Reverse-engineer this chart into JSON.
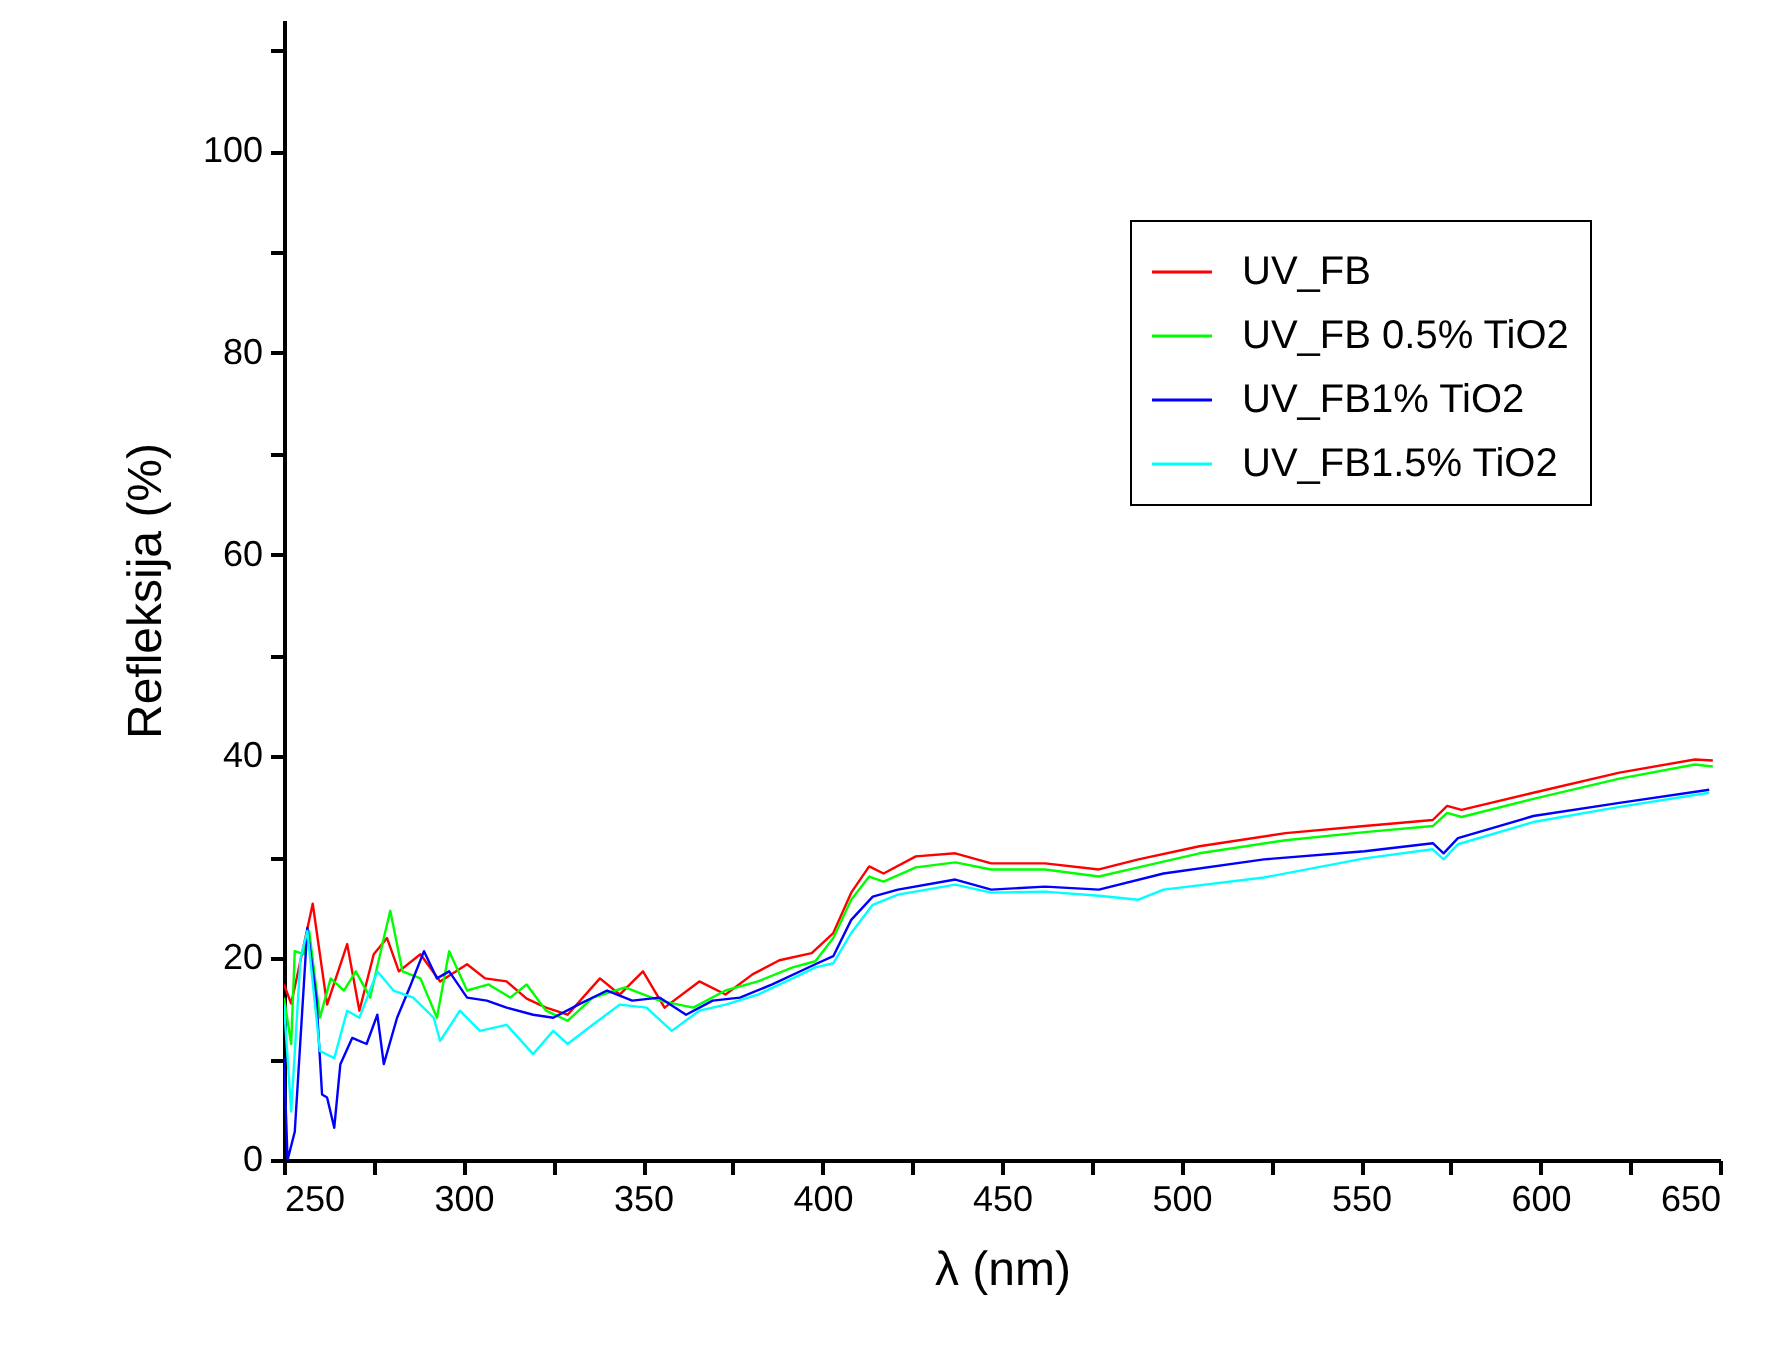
{
  "chart_data": {
    "type": "line",
    "xlabel": "λ (nm)",
    "ylabel": "Refleksija (%)",
    "xlim": [
      250,
      650
    ],
    "ylim": [
      0,
      113
    ],
    "xticks": [
      250,
      {
        "value": 275,
        "label": null
      },
      300,
      {
        "value": 325,
        "label": null
      },
      350,
      {
        "value": 375,
        "label": null
      },
      400,
      {
        "value": 425,
        "label": null
      },
      450,
      {
        "value": 475,
        "label": null
      },
      500,
      {
        "value": 525,
        "label": null
      },
      550,
      {
        "value": 575,
        "label": null
      },
      600,
      {
        "value": 625,
        "label": null
      },
      650
    ],
    "yticks": [
      0,
      {
        "value": 10,
        "label": null
      },
      20,
      {
        "value": 30,
        "label": null
      },
      40,
      {
        "value": 50,
        "label": null
      },
      60,
      {
        "value": 70,
        "label": null
      },
      80,
      {
        "value": 90,
        "label": null
      },
      100,
      {
        "value": 110,
        "label": null
      }
    ],
    "grid": false,
    "legend": "top right",
    "marker": "none",
    "line_style": "solid",
    "series": [
      {
        "name": "UV_FB",
        "color": "#ff0000",
        "x": [
          250,
          252,
          258,
          262,
          267.6,
          271,
          275,
          278.7,
          282,
          288,
          293.5,
          301,
          306,
          312,
          317.6,
          323,
          329,
          338,
          343.5,
          350,
          356,
          365.7,
          373,
          380.5,
          388,
          397,
          403,
          408,
          413,
          417,
          426,
          437,
          447,
          462,
          477,
          488,
          505,
          529,
          551,
          570,
          574,
          578,
          598,
          622,
          643,
          648
        ],
        "values": [
          17.4,
          15.5,
          25.4,
          15.4,
          21.4,
          14.8,
          20.4,
          22,
          18.7,
          20.4,
          17.7,
          19.4,
          18,
          17.7,
          16,
          15.1,
          14.4,
          18,
          16.4,
          18.7,
          15.1,
          17.7,
          16.4,
          18.4,
          19.8,
          20.5,
          22.5,
          26.5,
          29.1,
          28.4,
          30.1,
          30.4,
          29.4,
          29.4,
          28.8,
          29.8,
          31.1,
          32.4,
          33.1,
          33.7,
          35.1,
          34.7,
          36.4,
          38.4,
          39.7,
          39.6
        ]
      },
      {
        "name": "UV_FB 0.5% TiO2",
        "color": "#00ff00",
        "x": [
          250,
          252,
          253,
          255.5,
          257,
          260,
          263,
          266.7,
          270,
          274,
          277.8,
          279.6,
          283,
          288,
          292.6,
          296,
          301,
          307,
          313,
          317.6,
          323,
          329,
          336,
          345,
          354.6,
          364,
          373,
          382,
          391.7,
          398,
          403,
          408,
          413,
          417,
          426,
          437,
          447,
          462,
          477,
          488,
          505,
          529,
          551,
          570,
          574,
          578,
          598,
          622,
          643,
          648
        ],
        "values": [
          16.1,
          11.5,
          20.7,
          20.4,
          22.7,
          14.1,
          18,
          16.8,
          18.7,
          16.1,
          22,
          24.7,
          18.7,
          18,
          14.1,
          20.7,
          16.8,
          17.4,
          16.1,
          17.4,
          14.8,
          13.8,
          16.1,
          17.1,
          15.8,
          15.1,
          16.8,
          17.7,
          19.1,
          19.7,
          22,
          25.8,
          28.1,
          27.6,
          29,
          29.5,
          28.8,
          28.8,
          28.1,
          29,
          30.4,
          31.7,
          32.5,
          33.1,
          34.4,
          34,
          35.8,
          37.8,
          39.2,
          39
        ]
      },
      {
        "name": "UV_FB1% TiO2",
        "color": "#0000ff",
        "x": [
          250,
          251,
          253,
          256.5,
          259,
          260.6,
          262,
          264,
          265.7,
          269,
          273,
          276,
          277.8,
          281.5,
          285,
          289,
          292.6,
          296,
          301,
          306.5,
          312,
          319.4,
          325,
          332,
          340,
          347,
          354.6,
          362,
          369.4,
          377,
          386,
          398,
          403,
          408,
          414,
          421,
          437,
          447,
          462,
          477,
          495,
          523,
          551,
          570,
          573,
          577,
          598,
          622,
          647
        ],
        "values": [
          10.1,
          0,
          2.8,
          23,
          16.1,
          6.5,
          6.2,
          3.2,
          9.5,
          12.1,
          11.5,
          14.4,
          9.5,
          14.1,
          17.1,
          20.7,
          18,
          18.7,
          16.1,
          15.8,
          15.1,
          14.4,
          14.1,
          15.4,
          16.8,
          15.8,
          16.1,
          14.4,
          15.8,
          16.1,
          17.4,
          19.4,
          20.2,
          23.8,
          26.1,
          26.8,
          27.8,
          26.8,
          27.1,
          26.8,
          28.4,
          29.8,
          30.6,
          31.4,
          30.4,
          31.9,
          34.1,
          35.4,
          36.7
        ]
      },
      {
        "name": "UV_FB1.5% TiO2",
        "color": "#00ffff",
        "x": [
          250,
          252,
          254.6,
          256.5,
          260,
          264,
          267.6,
          271,
          276,
          280.5,
          286,
          291.7,
          293.5,
          299,
          304.6,
          312,
          319.4,
          325,
          329,
          336,
          343.5,
          351,
          358,
          365.7,
          373,
          382,
          391.7,
          398,
          403,
          408,
          414,
          421,
          437,
          447,
          462,
          477,
          488,
          495,
          523,
          551,
          570,
          573,
          577,
          598,
          622,
          647
        ],
        "values": [
          15.4,
          4.8,
          20,
          22.7,
          10.8,
          10.1,
          14.8,
          14.1,
          18.7,
          16.8,
          16.1,
          14.1,
          11.8,
          14.8,
          12.8,
          13.4,
          10.5,
          12.8,
          11.5,
          13.4,
          15.4,
          15.1,
          12.8,
          14.8,
          15.4,
          16.4,
          18,
          19.1,
          19.5,
          22.5,
          25.3,
          26.3,
          27.3,
          26.5,
          26.6,
          26.2,
          25.8,
          26.8,
          28,
          29.9,
          30.8,
          29.8,
          31.3,
          33.5,
          35,
          36.4
        ]
      }
    ]
  }
}
